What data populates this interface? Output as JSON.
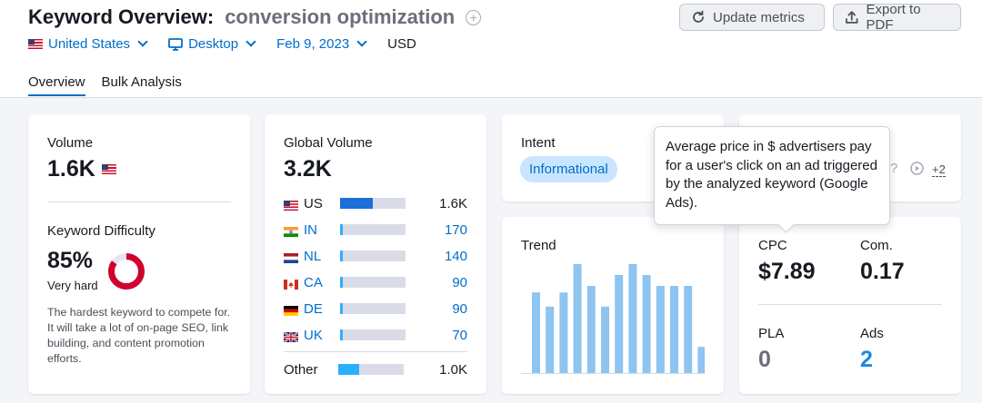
{
  "header": {
    "title": "Keyword Overview:",
    "keyword": "conversion optimization",
    "update_label": "Update metrics",
    "export_label": "Export to PDF"
  },
  "filters": {
    "country": "United States",
    "device": "Desktop",
    "date": "Feb 9, 2023",
    "currency": "USD"
  },
  "tabs": [
    {
      "label": "Overview",
      "active": true
    },
    {
      "label": "Bulk Analysis",
      "active": false
    }
  ],
  "volume": {
    "label": "Volume",
    "value": "1.6K"
  },
  "difficulty": {
    "label": "Keyword Difficulty",
    "percent": "85%",
    "percent_value": 85,
    "level": "Very hard",
    "description": "The hardest keyword to compete for. It will take a lot of on-page SEO, link building, and content promotion efforts.",
    "color": "#d1002f"
  },
  "global_volume": {
    "label": "Global Volume",
    "value": "3.2K",
    "countries": [
      {
        "code": "US",
        "value": "1.6K",
        "share": 0.5,
        "link": false
      },
      {
        "code": "IN",
        "value": "170",
        "share": 0.03,
        "link": true
      },
      {
        "code": "NL",
        "value": "140",
        "share": 0.03,
        "link": true
      },
      {
        "code": "CA",
        "value": "90",
        "share": 0.02,
        "link": true
      },
      {
        "code": "DE",
        "value": "90",
        "share": 0.02,
        "link": true
      },
      {
        "code": "UK",
        "value": "70",
        "share": 0.02,
        "link": true
      }
    ],
    "other": {
      "label": "Other",
      "value": "1.0K",
      "share": 0.32
    }
  },
  "intent": {
    "label": "Intent",
    "tag": "Informational"
  },
  "serp": {
    "more": "+2"
  },
  "trend": {
    "label": "Trend",
    "values": [
      0.74,
      0.61,
      0.74,
      1.0,
      0.8,
      0.61,
      0.9,
      1.0,
      0.9,
      0.8,
      0.8,
      0.8,
      0.24
    ],
    "color": "#8cc4f2"
  },
  "cpc": {
    "label": "CPC",
    "value": "$7.89"
  },
  "com": {
    "label": "Com.",
    "value": "0.17"
  },
  "pla": {
    "label": "PLA",
    "value": "0"
  },
  "ads": {
    "label": "Ads",
    "value": "2"
  },
  "tooltip": {
    "text": "Average price in $ advertisers pay for a user's click on an ad triggered by the analyzed keyword (Google Ads)."
  }
}
